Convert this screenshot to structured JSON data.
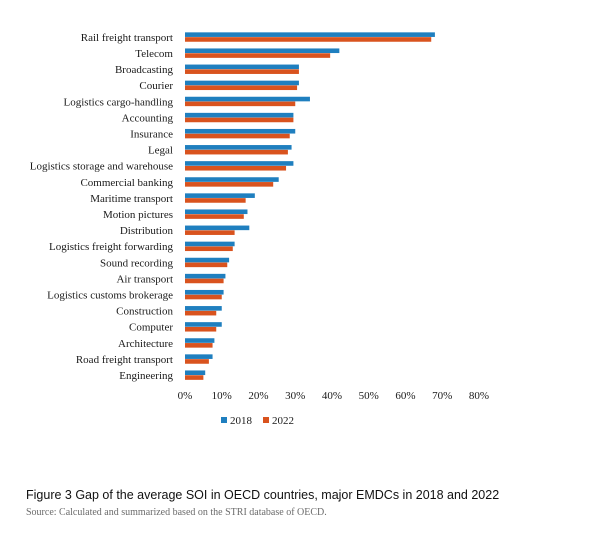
{
  "chart_data": {
    "type": "bar",
    "orientation": "horizontal",
    "categories": [
      "Rail freight transport",
      "Telecom",
      "Broadcasting",
      "Courier",
      "Logistics cargo-handling",
      "Accounting",
      "Insurance",
      "Legal",
      "Logistics storage and warehouse",
      "Commercial banking",
      "Maritime transport",
      "Motion pictures",
      "Distribution",
      "Logistics freight forwarding",
      "Sound recording",
      "Air transport",
      "Logistics customs brokerage",
      "Construction",
      "Computer",
      "Architecture",
      "Road freight transport",
      "Engineering"
    ],
    "series": [
      {
        "name": "2018",
        "color": "#1f7fbf",
        "values": [
          68,
          42,
          31,
          31,
          34,
          29.5,
          30,
          29,
          29.5,
          25.5,
          19,
          17,
          17.5,
          13.5,
          12,
          11,
          10.5,
          10,
          10,
          8,
          7.5,
          5.5
        ]
      },
      {
        "name": "2022",
        "color": "#d9531e",
        "values": [
          67,
          39.5,
          31,
          30.5,
          30,
          29.5,
          28.5,
          28,
          27.5,
          24,
          16.5,
          16,
          13.5,
          13,
          11.5,
          10.5,
          10,
          8.5,
          8.5,
          7.5,
          6.5,
          5
        ]
      }
    ],
    "xlim": [
      0,
      80
    ],
    "xticks": [
      "0%",
      "10%",
      "20%",
      "30%",
      "40%",
      "50%",
      "60%",
      "70%",
      "80%"
    ],
    "xlabel": "",
    "ylabel": "",
    "grid": false,
    "legend_position": "bottom"
  },
  "caption": "Figure 3 Gap of the average SOI in OECD countries, major EMDCs in 2018 and 2022",
  "source": "Source: Calculated and summarized based on the STRI database of OECD."
}
